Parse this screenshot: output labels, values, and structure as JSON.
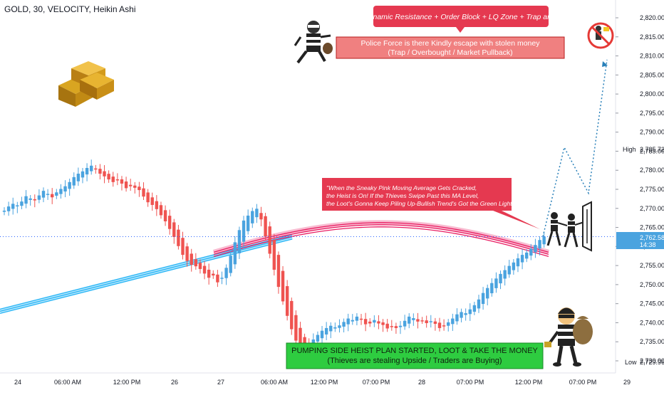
{
  "header": {
    "title": "GOLD, 30, VELOCITY, Heikin Ashi"
  },
  "colors": {
    "up": "#4aa3df",
    "down": "#ef5350",
    "pink_ma": "#e91e63",
    "blue_ma": "#29b6f6",
    "price_line": "#2962ff",
    "projection": "#2980b9"
  },
  "price_axis": {
    "ticks": [
      "2,820.00",
      "2,815.00",
      "2,810.00",
      "2,805.00",
      "2,800.00",
      "2,795.00",
      "2,790.00",
      "2,785.00",
      "2,780.00",
      "2,775.00",
      "2,770.00",
      "2,765.00",
      "2,760.00",
      "2,755.00",
      "2,750.00",
      "2,745.00",
      "2,740.00",
      "2,735.00",
      "2,730.00"
    ],
    "high_label": "High",
    "high_value": "2,785.72",
    "low_label": "Low",
    "low_value": "2,729.96",
    "last_price": "2,762.58",
    "countdown": "14:38"
  },
  "time_axis": {
    "ticks": [
      "24",
      "06:00 AM",
      "12:00 PM",
      "26",
      "27",
      "06:00 AM",
      "12:00 PM",
      "07:00 PM",
      "28",
      "07:00 PM",
      "12:00 PM",
      "07:00 PM",
      "29"
    ]
  },
  "annotations": {
    "top_banner": "Dynamic Resistance + Order Block + LQ Zone + Trap area",
    "police_line1": "Police Force is there Kindly escape with stolen money",
    "police_line2": "(Trap / Overbought / Market Pullback)",
    "quote_line1": "\"When the Sneaky Pink Moving Average Gets Cracked,",
    "quote_line2": "the Heist is On! If the Thieves Swipe Past this MA Level,",
    "quote_line3": "the Loot's Gonna Keep Piling Up-Bullish Trend's Got the Green Light!\"",
    "green_line1": "PUMPING SIDE HEIST PLAN STARTED, LOOT & TAKE THE MONEY",
    "green_line2": "(Thieves are stealing Upside / Traders are Buying)"
  },
  "icons": [
    "gold-bars-icon",
    "running-thief-icon",
    "no-thief-sign-icon",
    "thieves-breaking-in-icon",
    "thief-with-money-bag-icon"
  ],
  "chart_data": {
    "type": "candlestick",
    "symbol": "GOLD",
    "timeframe": "30",
    "candle_style": "Heikin Ashi",
    "ylim": [
      2727,
      2823
    ],
    "series": [
      {
        "name": "",
        "close_prices": [
          2769.4,
          2770.5,
          2771.2,
          2770.8,
          2771.8,
          2773.2,
          2772.6,
          2772.1,
          2773.4,
          2774.6,
          2773.8,
          2772.9,
          2774.2,
          2775.1,
          2775.8,
          2776.9,
          2778.2,
          2779.1,
          2779.7,
          2780.6,
          2781.2,
          2780.3,
          2779.1,
          2778.4,
          2777.6,
          2776.9,
          2777.6,
          2776.5,
          2775.3,
          2775.8,
          2775.4,
          2774.8,
          2773.1,
          2771.6,
          2770.9,
          2769.8,
          2768.2,
          2766.6,
          2764.6,
          2762.5,
          2760.1,
          2757.8,
          2756.2,
          2755.2,
          2754.8,
          2754.1,
          2752.9,
          2751.8,
          2752.4,
          2750.6,
          2751.8,
          2754.4,
          2757.6,
          2761.1,
          2764.3,
          2766.8,
          2768.1,
          2769.3,
          2769.9,
          2767.1,
          2762.6,
          2758.1,
          2753.9,
          2749.4,
          2745.6,
          2741.8,
          2738.3,
          2735.3,
          2733.8,
          2733.1,
          2734.4,
          2735.6,
          2736.8,
          2737.9,
          2738.6,
          2739.2,
          2738.8,
          2739.3,
          2740.2,
          2741.1,
          2740.7,
          2741.6,
          2740.9,
          2739.6,
          2739.8,
          2740.7,
          2739.8,
          2739.4,
          2738.5,
          2739.1,
          2738.6,
          2739.2,
          2740.5,
          2741.6,
          2741.2,
          2740.3,
          2740.6,
          2739.9,
          2740.4,
          2739.7,
          2738.6,
          2739.1,
          2740.1,
          2741.1,
          2742.2,
          2742.8,
          2742.5,
          2743.5,
          2744.6,
          2746.1,
          2747.8,
          2749.1,
          2750.4,
          2751.6,
          2752.8,
          2753.8,
          2754.9,
          2755.8,
          2756.9,
          2757.8,
          2758.4,
          2759.4,
          2760.4,
          2761.7,
          2762.6
        ],
        "x_range_label": "24 → 28 (30-minute candles)"
      },
      {
        "name": "",
        "description": "pink moving average curve"
      },
      {
        "name": "",
        "description": "blue moving average band"
      }
    ],
    "projection_path": [
      2762.6,
      2786.0,
      2774.0,
      2809.0
    ],
    "high": 2785.72,
    "low": 2729.96,
    "last": 2762.58
  }
}
